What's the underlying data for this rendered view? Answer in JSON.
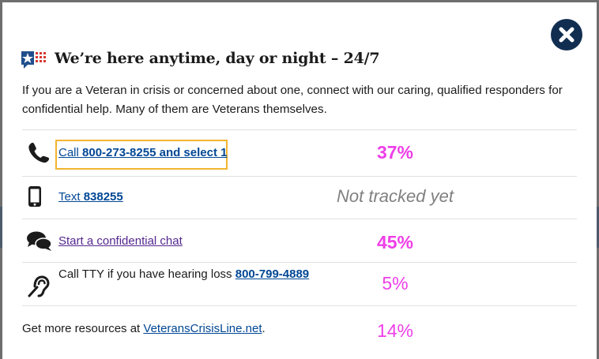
{
  "modal": {
    "title": "We’re here anytime, day or night – 24/7",
    "intro": "If you are a Veteran in crisis or concerned about one, connect with our caring, qualified responders for confidential help. Many of them are Veterans themselves."
  },
  "rows": [
    {
      "icon": "phone-icon",
      "prefix": "Call ",
      "link_text": "800-273-8255 and select 1",
      "stat": "37%"
    },
    {
      "icon": "mobile-phone-icon",
      "prefix": "Text ",
      "link_text": "838255",
      "stat": "Not tracked yet"
    },
    {
      "icon": "chat-icon",
      "link_text": "Start a confidential chat",
      "stat": "45%"
    },
    {
      "icon": "hearing-loss-icon",
      "text": "Call TTY if you have hearing loss ",
      "link_text": "800-799-4889",
      "stat": "5%"
    }
  ],
  "footer": {
    "text": "Get more resources at ",
    "link_text": "VeteransCrisisLine.net",
    "suffix": ".",
    "stat": "14%"
  },
  "colors": {
    "accent_stat": "#ee3fe8",
    "link": "#004795",
    "visited_link": "#54278f",
    "close_button": "#112e51",
    "focus_outline": "#f2b430"
  }
}
